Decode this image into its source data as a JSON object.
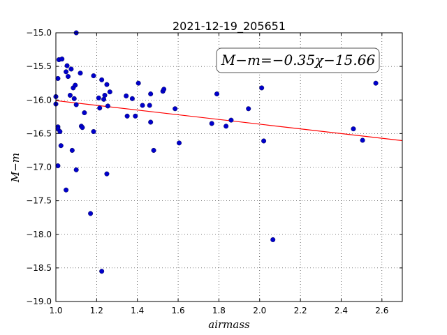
{
  "chart_data": {
    "type": "scatter",
    "title": "2021-12-19_205651",
    "xlabel": "airmass",
    "ylabel": "M−m",
    "xlim": [
      1.0,
      2.7
    ],
    "ylim": [
      -19.0,
      -15.0
    ],
    "x_ticks": [
      "1.0",
      "1.2",
      "1.4",
      "1.6",
      "1.8",
      "2.0",
      "2.2",
      "2.4",
      "2.6"
    ],
    "y_ticks": [
      "−15.0",
      "−15.5",
      "−16.0",
      "−16.5",
      "−17.0",
      "−17.5",
      "−18.0",
      "−18.5",
      "−19.0"
    ],
    "grid": true,
    "annotation": "M−m=−0.35χ−15.66",
    "fit_line": {
      "slope": -0.35,
      "intercept": -15.66,
      "color": "#ff0000"
    },
    "point_color": "#0000cc",
    "points": [
      [
        1.0,
        -15.95
      ],
      [
        1.0,
        -16.06
      ],
      [
        1.01,
        -16.4
      ],
      [
        1.01,
        -16.43
      ],
      [
        1.01,
        -16.98
      ],
      [
        1.01,
        -15.68
      ],
      [
        1.015,
        -15.4
      ],
      [
        1.02,
        -16.47
      ],
      [
        1.025,
        -16.68
      ],
      [
        1.03,
        -15.39
      ],
      [
        1.05,
        -15.58
      ],
      [
        1.055,
        -15.49
      ],
      [
        1.05,
        -17.34
      ],
      [
        1.06,
        -15.65
      ],
      [
        1.07,
        -15.93
      ],
      [
        1.075,
        -15.54
      ],
      [
        1.08,
        -16.75
      ],
      [
        1.085,
        -15.82
      ],
      [
        1.09,
        -15.98
      ],
      [
        1.095,
        -15.78
      ],
      [
        1.1,
        -15.0
      ],
      [
        1.1,
        -16.07
      ],
      [
        1.1,
        -17.04
      ],
      [
        1.12,
        -15.6
      ],
      [
        1.125,
        -16.39
      ],
      [
        1.13,
        -16.41
      ],
      [
        1.14,
        -16.19
      ],
      [
        1.17,
        -17.69
      ],
      [
        1.185,
        -15.64
      ],
      [
        1.185,
        -16.47
      ],
      [
        1.21,
        -15.97
      ],
      [
        1.215,
        -16.12
      ],
      [
        1.225,
        -18.55
      ],
      [
        1.225,
        -15.7
      ],
      [
        1.235,
        -15.99
      ],
      [
        1.24,
        -15.93
      ],
      [
        1.25,
        -15.77
      ],
      [
        1.25,
        -17.1
      ],
      [
        1.255,
        -16.09
      ],
      [
        1.265,
        -15.88
      ],
      [
        1.345,
        -15.94
      ],
      [
        1.35,
        -16.24
      ],
      [
        1.375,
        -15.98
      ],
      [
        1.39,
        -16.24
      ],
      [
        1.405,
        -15.75
      ],
      [
        1.425,
        -16.08
      ],
      [
        1.46,
        -16.08
      ],
      [
        1.465,
        -15.91
      ],
      [
        1.465,
        -16.33
      ],
      [
        1.48,
        -16.75
      ],
      [
        1.525,
        -15.87
      ],
      [
        1.53,
        -15.84
      ],
      [
        1.585,
        -16.13
      ],
      [
        1.605,
        -16.64
      ],
      [
        1.765,
        -16.35
      ],
      [
        1.79,
        -15.91
      ],
      [
        1.835,
        -16.39
      ],
      [
        1.86,
        -16.3
      ],
      [
        1.945,
        -16.13
      ],
      [
        2.01,
        -15.82
      ],
      [
        2.02,
        -16.61
      ],
      [
        2.065,
        -18.08
      ],
      [
        2.46,
        -16.43
      ],
      [
        2.505,
        -16.6
      ],
      [
        2.57,
        -15.75
      ]
    ]
  }
}
